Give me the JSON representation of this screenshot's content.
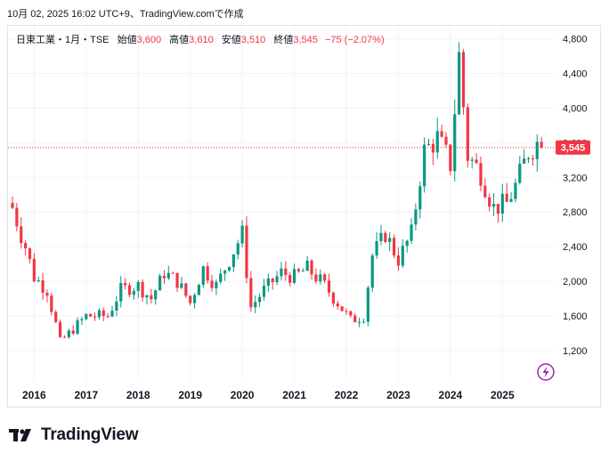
{
  "caption": "10月 02, 2025 16:02 UTC+9、TradingView.comで作成",
  "legend": {
    "symbol": "日東工業・1月・TSE",
    "open_label": "始値",
    "open": "3,600",
    "high_label": "高値",
    "high": "3,610",
    "low_label": "安値",
    "low": "3,510",
    "close_label": "終値",
    "close": "3,545",
    "change": "−75 (−2.07%)"
  },
  "brand": "TradingView",
  "last_price_tag": "3,545",
  "colors": {
    "up": "#089981",
    "down": "#f23645",
    "grid": "#f0f3fa",
    "axis_text": "#131722",
    "accent_icon": "#9c27b0"
  },
  "chart_data": {
    "type": "candlestick",
    "interval": "monthly",
    "x_ticks": [
      "2016",
      "2017",
      "2018",
      "2019",
      "2020",
      "2021",
      "2022",
      "2023",
      "2024",
      "2025"
    ],
    "y_ticks": [
      "1,200",
      "1,600",
      "2,000",
      "2,400",
      "2,800",
      "3,200",
      "3,600",
      "4,000",
      "4,400",
      "4,800"
    ],
    "y_tick_values": [
      1200,
      1600,
      2000,
      2400,
      2800,
      3200,
      3600,
      4000,
      4400,
      4800
    ],
    "ylim": [
      850,
      4950
    ],
    "x_start": "2015-08",
    "grid": true,
    "last_close": 3545,
    "close_path": [
      [
        "2015-08",
        2850
      ],
      [
        "2015-11",
        2400
      ],
      [
        "2016-01",
        2050
      ],
      [
        "2016-04",
        1900
      ],
      [
        "2016-07",
        1300
      ],
      [
        "2016-10",
        1450
      ],
      [
        "2017-01",
        1600
      ],
      [
        "2017-06",
        1600
      ],
      [
        "2017-09",
        1900
      ],
      [
        "2018-01",
        1950
      ],
      [
        "2018-04",
        1800
      ],
      [
        "2018-07",
        2100
      ],
      [
        "2018-10",
        2000
      ],
      [
        "2019-01",
        1750
      ],
      [
        "2019-04",
        2150
      ],
      [
        "2019-07",
        1950
      ],
      [
        "2019-10",
        2250
      ],
      [
        "2020-01",
        2550
      ],
      [
        "2020-03",
        1700
      ],
      [
        "2020-06",
        1900
      ],
      [
        "2020-10",
        2100
      ],
      [
        "2021-01",
        2050
      ],
      [
        "2021-04",
        2150
      ],
      [
        "2021-08",
        1950
      ],
      [
        "2021-11",
        1750
      ],
      [
        "2022-02",
        1550
      ],
      [
        "2022-05",
        1600
      ],
      [
        "2022-07",
        2300
      ],
      [
        "2022-10",
        2550
      ],
      [
        "2023-01",
        2250
      ],
      [
        "2023-04",
        2550
      ],
      [
        "2023-07",
        3500
      ],
      [
        "2023-10",
        3650
      ],
      [
        "2024-01",
        3350
      ],
      [
        "2024-03",
        4600
      ],
      [
        "2024-05",
        3450
      ],
      [
        "2024-08",
        3250
      ],
      [
        "2024-11",
        2850
      ],
      [
        "2025-02",
        2900
      ],
      [
        "2025-04",
        3100
      ],
      [
        "2025-07",
        3500
      ],
      [
        "2025-09",
        3600
      ],
      [
        "2025-10",
        3545
      ]
    ]
  }
}
